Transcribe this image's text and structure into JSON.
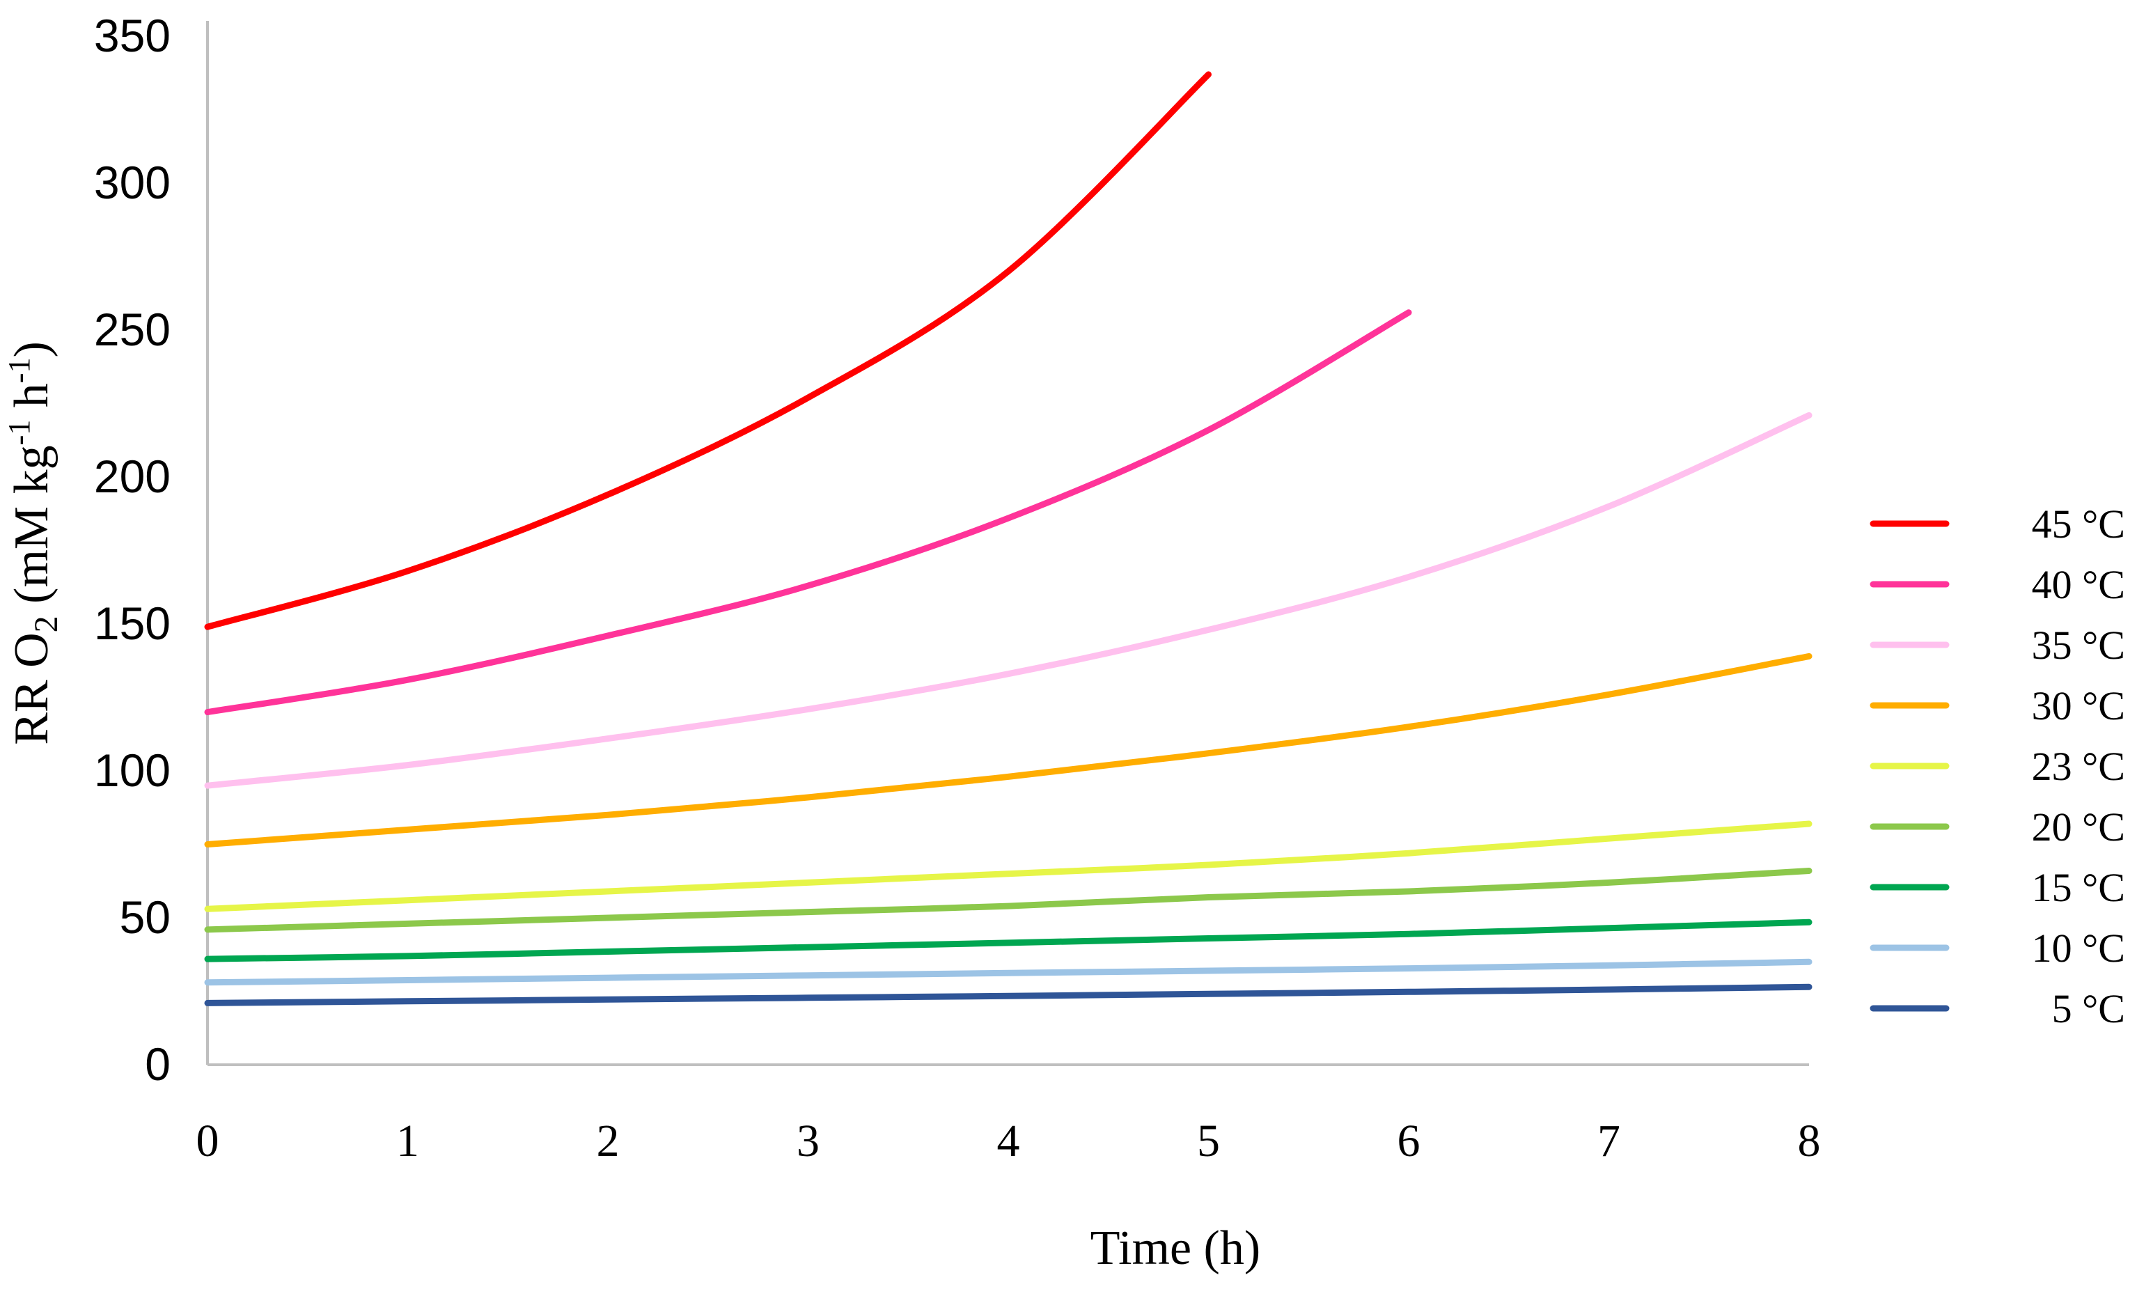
{
  "chart_data": {
    "type": "line",
    "title": "",
    "xlabel": "Time (h)",
    "ylabel_parts": {
      "a": "RR O",
      "b": "2",
      "c": " (mM kg",
      "d": "-1",
      "e": " h",
      "f": "-1",
      "g": ")"
    },
    "xlim": [
      0,
      8
    ],
    "ylim": [
      0,
      350
    ],
    "x_ticks": [
      "0",
      "1",
      "2",
      "3",
      "4",
      "5",
      "6",
      "7",
      "8"
    ],
    "y_ticks": [
      "0",
      "50",
      "100",
      "150",
      "200",
      "250",
      "300",
      "350"
    ],
    "grid": false,
    "legend_position": "right",
    "series": [
      {
        "name": "45 °C",
        "color": "#ff0000",
        "x": [
          0,
          1,
          2,
          3,
          4,
          5
        ],
        "values": [
          149,
          168,
          194,
          227,
          270,
          337
        ]
      },
      {
        "name": "40 °C",
        "color": "#ff3399",
        "x": [
          0,
          1,
          2,
          3,
          4,
          5,
          6
        ],
        "values": [
          120,
          131,
          146,
          163,
          186,
          216,
          256
        ]
      },
      {
        "name": "35 °C",
        "color": "#ffc0ee",
        "x": [
          0,
          1,
          2,
          3,
          4,
          5,
          6,
          7,
          8
        ],
        "values": [
          95,
          102,
          111,
          121,
          133,
          148,
          166,
          190,
          221
        ]
      },
      {
        "name": "30 °C",
        "color": "#ffad00",
        "x": [
          0,
          1,
          2,
          3,
          4,
          5,
          6,
          7,
          8
        ],
        "values": [
          75,
          80,
          85,
          91,
          98,
          106,
          115,
          126,
          139
        ]
      },
      {
        "name": "23 °C",
        "color": "#e6f548",
        "x": [
          0,
          1,
          2,
          3,
          4,
          5,
          6,
          7,
          8
        ],
        "values": [
          53,
          56,
          59,
          62,
          65,
          68,
          72,
          77,
          82
        ]
      },
      {
        "name": "20 °C",
        "color": "#8cc84b",
        "x": [
          0,
          1,
          2,
          3,
          4,
          5,
          6,
          7,
          8
        ],
        "values": [
          46,
          48,
          50,
          52,
          54,
          57,
          59,
          62,
          66
        ]
      },
      {
        "name": "15 °C",
        "color": "#00a651",
        "x": [
          0,
          1,
          2,
          3,
          4,
          5,
          6,
          7,
          8
        ],
        "values": [
          36,
          37,
          38.5,
          40,
          41.5,
          43,
          44.5,
          46.5,
          48.5
        ]
      },
      {
        "name": "10 °C",
        "color": "#9cc3e5",
        "x": [
          0,
          1,
          2,
          3,
          4,
          5,
          6,
          7,
          8
        ],
        "values": [
          28,
          28.8,
          29.6,
          30.4,
          31.2,
          32,
          32.8,
          33.8,
          35
        ]
      },
      {
        "name": "5 °C",
        "color": "#2f5597",
        "x": [
          0,
          1,
          2,
          3,
          4,
          5,
          6,
          7,
          8
        ],
        "values": [
          21,
          21.6,
          22.2,
          22.8,
          23.4,
          24.1,
          24.8,
          25.6,
          26.5
        ]
      }
    ]
  }
}
